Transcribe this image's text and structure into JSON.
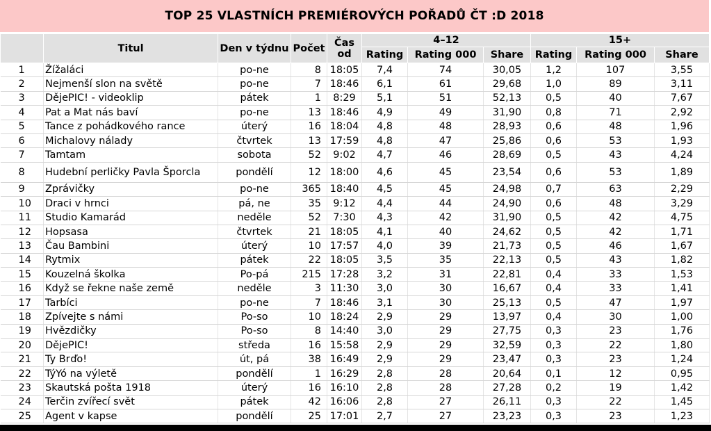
{
  "title": "TOP 25 VLASTNÍCH PREMIÉROVÝCH POŘADŮ ČT :D 2018",
  "headers": {
    "rank": "",
    "titul": "Titul",
    "den": "Den v týdnu",
    "pocet": "Počet",
    "cas": "Čas od",
    "group_kids": "4–12",
    "group_adults": "15+",
    "rating": "Rating",
    "rating000": "Rating 000",
    "share": "Share"
  },
  "rows": [
    {
      "rank": "1",
      "titul": "Žížaláci",
      "den": "po-ne",
      "pocet": "8",
      "cas": "18:05",
      "r1": "7,4",
      "r1k": "74",
      "s1": "30,05",
      "r2": "1,2",
      "r2k": "107",
      "s2": "3,55"
    },
    {
      "rank": "2",
      "titul": "Nejmenší slon na světě",
      "den": "po-ne",
      "pocet": "7",
      "cas": "18:46",
      "r1": "6,1",
      "r1k": "61",
      "s1": "29,68",
      "r2": "1,0",
      "r2k": "89",
      "s2": "3,11"
    },
    {
      "rank": "3",
      "titul": "DějePIC! - videoklip",
      "den": "pátek",
      "pocet": "1",
      "cas": "8:29",
      "r1": "5,1",
      "r1k": "51",
      "s1": "52,13",
      "r2": "0,5",
      "r2k": "40",
      "s2": "7,67"
    },
    {
      "rank": "4",
      "titul": "Pat a Mat nás baví",
      "den": "po-ne",
      "pocet": "13",
      "cas": "18:46",
      "r1": "4,9",
      "r1k": "49",
      "s1": "31,90",
      "r2": "0,8",
      "r2k": "71",
      "s2": "2,92"
    },
    {
      "rank": "5",
      "titul": "Tance z pohádkového rance",
      "den": "úterý",
      "pocet": "16",
      "cas": "18:04",
      "r1": "4,8",
      "r1k": "48",
      "s1": "28,93",
      "r2": "0,6",
      "r2k": "48",
      "s2": "1,96"
    },
    {
      "rank": "6",
      "titul": "Michalovy nálady",
      "den": "čtvrtek",
      "pocet": "13",
      "cas": "17:59",
      "r1": "4,8",
      "r1k": "47",
      "s1": "25,86",
      "r2": "0,6",
      "r2k": "53",
      "s2": "1,93"
    },
    {
      "rank": "7",
      "titul": "Tamtam",
      "den": "sobota",
      "pocet": "52",
      "cas": "9:02",
      "r1": "4,7",
      "r1k": "46",
      "s1": "28,69",
      "r2": "0,5",
      "r2k": "43",
      "s2": "4,24"
    },
    {
      "rank": "8",
      "titul": "Hudební perličky Pavla Šporcla",
      "den": "pondělí",
      "pocet": "12",
      "cas": "18:00",
      "r1": "4,6",
      "r1k": "45",
      "s1": "23,54",
      "r2": "0,6",
      "r2k": "53",
      "s2": "1,89"
    },
    {
      "rank": "9",
      "titul": "Zprávičky",
      "den": "po-ne",
      "pocet": "365",
      "cas": "18:40",
      "r1": "4,5",
      "r1k": "45",
      "s1": "24,98",
      "r2": "0,7",
      "r2k": "63",
      "s2": "2,29"
    },
    {
      "rank": "10",
      "titul": "Draci v hrnci",
      "den": "pá, ne",
      "pocet": "35",
      "cas": "9:12",
      "r1": "4,4",
      "r1k": "44",
      "s1": "24,90",
      "r2": "0,6",
      "r2k": "48",
      "s2": "3,29"
    },
    {
      "rank": "11",
      "titul": "Studio Kamarád",
      "den": "neděle",
      "pocet": "52",
      "cas": "7:30",
      "r1": "4,3",
      "r1k": "42",
      "s1": "31,90",
      "r2": "0,5",
      "r2k": "42",
      "s2": "4,75"
    },
    {
      "rank": "12",
      "titul": "Hopsasa",
      "den": "čtvrtek",
      "pocet": "21",
      "cas": "18:05",
      "r1": "4,1",
      "r1k": "40",
      "s1": "24,62",
      "r2": "0,5",
      "r2k": "42",
      "s2": "1,71"
    },
    {
      "rank": "13",
      "titul": "Čau Bambini",
      "den": "úterý",
      "pocet": "10",
      "cas": "17:57",
      "r1": "4,0",
      "r1k": "39",
      "s1": "21,73",
      "r2": "0,5",
      "r2k": "46",
      "s2": "1,67"
    },
    {
      "rank": "14",
      "titul": "Rytmix",
      "den": "pátek",
      "pocet": "22",
      "cas": "18:05",
      "r1": "3,5",
      "r1k": "35",
      "s1": "22,13",
      "r2": "0,5",
      "r2k": "43",
      "s2": "1,82"
    },
    {
      "rank": "15",
      "titul": "Kouzelná školka",
      "den": "Po-pá",
      "pocet": "215",
      "cas": "17:28",
      "r1": "3,2",
      "r1k": "31",
      "s1": "22,81",
      "r2": "0,4",
      "r2k": "33",
      "s2": "1,53"
    },
    {
      "rank": "16",
      "titul": "Když se řekne naše země",
      "den": "neděle",
      "pocet": "3",
      "cas": "11:30",
      "r1": "3,0",
      "r1k": "30",
      "s1": "16,67",
      "r2": "0,4",
      "r2k": "33",
      "s2": "1,41"
    },
    {
      "rank": "17",
      "titul": "Tarbíci",
      "den": "po-ne",
      "pocet": "7",
      "cas": "18:46",
      "r1": "3,1",
      "r1k": "30",
      "s1": "25,13",
      "r2": "0,5",
      "r2k": "47",
      "s2": "1,97"
    },
    {
      "rank": "18",
      "titul": "Zpívejte s námi",
      "den": "Po-so",
      "pocet": "10",
      "cas": "18:24",
      "r1": "2,9",
      "r1k": "29",
      "s1": "13,97",
      "r2": "0,4",
      "r2k": "30",
      "s2": "1,00"
    },
    {
      "rank": "19",
      "titul": "Hvězdičky",
      "den": "Po-so",
      "pocet": "8",
      "cas": "14:40",
      "r1": "3,0",
      "r1k": "29",
      "s1": "27,75",
      "r2": "0,3",
      "r2k": "23",
      "s2": "1,76"
    },
    {
      "rank": "20",
      "titul": "DějePIC!",
      "den": "středa",
      "pocet": "16",
      "cas": "15:58",
      "r1": "2,9",
      "r1k": "29",
      "s1": "32,59",
      "r2": "0,3",
      "r2k": "22",
      "s2": "1,80"
    },
    {
      "rank": "21",
      "titul": "Ty Brďo!",
      "den": "út, pá",
      "pocet": "38",
      "cas": "16:49",
      "r1": "2,9",
      "r1k": "29",
      "s1": "23,47",
      "r2": "0,3",
      "r2k": "23",
      "s2": "1,24"
    },
    {
      "rank": "22",
      "titul": "TýYó na výletě",
      "den": "pondělí",
      "pocet": "1",
      "cas": "16:29",
      "r1": "2,8",
      "r1k": "28",
      "s1": "20,64",
      "r2": "0,1",
      "r2k": "12",
      "s2": "0,95"
    },
    {
      "rank": "23",
      "titul": "Skautská pošta 1918",
      "den": "úterý",
      "pocet": "16",
      "cas": "16:10",
      "r1": "2,8",
      "r1k": "28",
      "s1": "27,28",
      "r2": "0,2",
      "r2k": "19",
      "s2": "1,42"
    },
    {
      "rank": "24",
      "titul": "Terčin zvířecí svět",
      "den": "pátek",
      "pocet": "42",
      "cas": "16:06",
      "r1": "2,8",
      "r1k": "27",
      "s1": "26,11",
      "r2": "0,3",
      "r2k": "22",
      "s2": "1,45"
    },
    {
      "rank": "25",
      "titul": "Agent v kapse",
      "den": "pondělí",
      "pocet": "25",
      "cas": "17:01",
      "r1": "2,7",
      "r1k": "27",
      "s1": "23,23",
      "r2": "0,3",
      "r2k": "23",
      "s2": "1,23"
    }
  ]
}
